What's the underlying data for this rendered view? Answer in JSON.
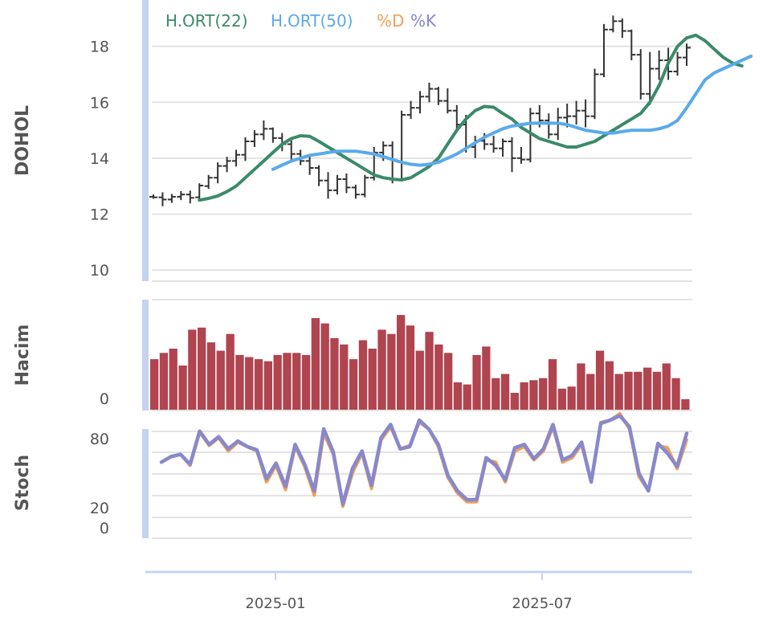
{
  "chart_data": [
    {
      "type": "ohlc",
      "panel": "price",
      "ylabel": "DOHOL",
      "ylim": [
        9.6,
        19.6
      ],
      "yticks": [
        10,
        12,
        14,
        16,
        18
      ],
      "xticks": [
        "2025-01",
        "2025-07"
      ],
      "legend": [
        {
          "label": "H.ORT(22)",
          "color": "#3b8a6a"
        },
        {
          "label": "H.ORT(50)",
          "color": "#5aaaea"
        },
        {
          "label": "%D",
          "color": "#f0a05a"
        },
        {
          "label": "%K",
          "color": "#8888cc"
        }
      ],
      "bars_ohlc": [
        [
          12.62,
          12.7,
          12.55,
          12.6
        ],
        [
          12.6,
          12.78,
          12.28,
          12.52
        ],
        [
          12.52,
          12.72,
          12.4,
          12.62
        ],
        [
          12.62,
          12.82,
          12.5,
          12.7
        ],
        [
          12.7,
          12.84,
          12.38,
          12.58
        ],
        [
          12.6,
          13.1,
          12.5,
          13.02
        ],
        [
          13.0,
          13.4,
          12.9,
          13.3
        ],
        [
          13.3,
          13.85,
          13.1,
          13.72
        ],
        [
          13.72,
          14.05,
          13.5,
          13.9
        ],
        [
          13.9,
          14.3,
          13.7,
          14.12
        ],
        [
          14.12,
          14.75,
          13.9,
          14.6
        ],
        [
          14.6,
          15.0,
          14.4,
          14.85
        ],
        [
          14.85,
          15.35,
          14.65,
          15.05
        ],
        [
          15.05,
          15.1,
          14.55,
          14.72
        ],
        [
          14.72,
          14.9,
          14.25,
          14.5
        ],
        [
          14.5,
          14.65,
          13.95,
          14.15
        ],
        [
          14.15,
          14.3,
          13.75,
          13.9
        ],
        [
          13.9,
          14.1,
          13.4,
          13.65
        ],
        [
          13.65,
          13.75,
          13.0,
          13.2
        ],
        [
          13.2,
          13.5,
          12.55,
          12.85
        ],
        [
          12.85,
          13.4,
          12.7,
          13.25
        ],
        [
          13.25,
          13.45,
          12.75,
          12.95
        ],
        [
          12.95,
          13.05,
          12.55,
          12.7
        ],
        [
          12.7,
          13.4,
          12.6,
          13.3
        ],
        [
          13.3,
          14.4,
          13.2,
          14.2
        ],
        [
          14.2,
          14.6,
          13.9,
          14.45
        ],
        [
          14.45,
          14.6,
          13.1,
          13.25
        ],
        [
          13.25,
          15.7,
          13.2,
          15.55
        ],
        [
          15.55,
          16.05,
          15.4,
          15.8
        ],
        [
          15.8,
          16.4,
          15.6,
          16.2
        ],
        [
          16.2,
          16.7,
          16.0,
          16.48
        ],
        [
          16.48,
          16.55,
          15.9,
          16.05
        ],
        [
          16.05,
          16.5,
          15.6,
          15.7
        ],
        [
          15.7,
          15.9,
          15.05,
          15.2
        ],
        [
          15.2,
          15.55,
          14.2,
          14.4
        ],
        [
          14.4,
          14.8,
          14.0,
          14.62
        ],
        [
          14.62,
          14.9,
          14.3,
          14.5
        ],
        [
          14.5,
          14.8,
          14.2,
          14.35
        ],
        [
          14.35,
          14.7,
          14.05,
          14.6
        ],
        [
          14.6,
          14.75,
          13.5,
          14.0
        ],
        [
          14.0,
          14.4,
          13.8,
          13.95
        ],
        [
          13.95,
          15.8,
          13.85,
          15.6
        ],
        [
          15.6,
          15.9,
          15.1,
          15.35
        ],
        [
          15.35,
          15.6,
          14.7,
          14.85
        ],
        [
          14.85,
          15.8,
          14.65,
          15.45
        ],
        [
          15.45,
          15.95,
          15.1,
          15.5
        ],
        [
          15.5,
          16.05,
          15.2,
          15.7
        ],
        [
          15.7,
          16.1,
          15.1,
          15.5
        ],
        [
          15.5,
          17.2,
          15.4,
          17.0
        ],
        [
          17.0,
          18.8,
          16.9,
          18.6
        ],
        [
          18.6,
          19.1,
          18.5,
          18.9
        ],
        [
          18.9,
          19.0,
          18.3,
          18.55
        ],
        [
          18.55,
          18.6,
          17.5,
          17.7
        ],
        [
          17.7,
          17.9,
          16.1,
          16.3
        ],
        [
          16.3,
          17.8,
          15.9,
          17.2
        ],
        [
          17.2,
          17.85,
          16.8,
          17.5
        ],
        [
          17.5,
          17.95,
          16.8,
          17.1
        ],
        [
          17.1,
          17.8,
          16.95,
          17.6
        ],
        [
          17.6,
          18.1,
          17.3,
          17.95
        ]
      ],
      "series": [
        {
          "name": "H.ORT(22)",
          "color": "#3b8a6a",
          "start": 5,
          "values": [
            12.5,
            12.56,
            12.65,
            12.8,
            13.0,
            13.3,
            13.6,
            13.9,
            14.2,
            14.5,
            14.7,
            14.8,
            14.78,
            14.6,
            14.4,
            14.2,
            14.0,
            13.8,
            13.6,
            13.4,
            13.3,
            13.25,
            13.22,
            13.3,
            13.5,
            13.7,
            14.0,
            14.5,
            15.0,
            15.4,
            15.7,
            15.85,
            15.82,
            15.6,
            15.4,
            15.1,
            14.9,
            14.7,
            14.6,
            14.5,
            14.4,
            14.4,
            14.5,
            14.6,
            14.8,
            15.0,
            15.2,
            15.4,
            15.6,
            16.0,
            16.6,
            17.4,
            18.0,
            18.3,
            18.4,
            18.2,
            17.9,
            17.6,
            17.4,
            17.3
          ]
        },
        {
          "name": "H.ORT(50)",
          "color": "#5aaaea",
          "start": 13,
          "values": [
            13.6,
            13.75,
            13.9,
            14.0,
            14.1,
            14.15,
            14.2,
            14.25,
            14.25,
            14.25,
            14.2,
            14.15,
            14.05,
            13.95,
            13.85,
            13.78,
            13.75,
            13.78,
            13.85,
            14.0,
            14.15,
            14.35,
            14.55,
            14.75,
            14.9,
            15.05,
            15.15,
            15.2,
            15.25,
            15.25,
            15.25,
            15.25,
            15.2,
            15.1,
            15.0,
            14.95,
            14.9,
            14.9,
            14.95,
            15.0,
            15.0,
            15.0,
            15.05,
            15.15,
            15.35,
            15.8,
            16.3,
            16.8,
            17.05,
            17.2,
            17.35,
            17.5,
            17.65
          ]
        }
      ]
    },
    {
      "type": "bar",
      "panel": "volume",
      "ylabel": "Hacim",
      "yticks": [
        0
      ],
      "ylim": [
        0,
        100
      ],
      "color": "#b0444f",
      "values": [
        48,
        54,
        58,
        42,
        76,
        78,
        64,
        56,
        72,
        52,
        50,
        48,
        46,
        52,
        54,
        54,
        52,
        87,
        82,
        68,
        62,
        48,
        66,
        58,
        76,
        72,
        90,
        80,
        56,
        74,
        62,
        54,
        26,
        24,
        52,
        60,
        30,
        34,
        16,
        26,
        28,
        30,
        48,
        20,
        22,
        44,
        34,
        56,
        46,
        34,
        36,
        36,
        40,
        36,
        44,
        30,
        10
      ]
    },
    {
      "type": "line",
      "panel": "stochastic",
      "ylabel": "Stoch",
      "yticks": [
        0,
        20,
        80
      ],
      "ylim": [
        0,
        100
      ],
      "series": [
        {
          "name": "%D",
          "color": "#f0a05a",
          "values": [
            50,
            55,
            57,
            47,
            77,
            65,
            72,
            60,
            68,
            64,
            60,
            32,
            47,
            25,
            64,
            46,
            20,
            76,
            57,
            10,
            40,
            58,
            26,
            70,
            82,
            62,
            65,
            86,
            80,
            64,
            36,
            22,
            14,
            14,
            52,
            50,
            32,
            60,
            64,
            52,
            60,
            82,
            50,
            54,
            66,
            32,
            86,
            88,
            94,
            80,
            37,
            24,
            65,
            63,
            44,
            70
          ]
        },
        {
          "name": "%K",
          "color": "#8888cc",
          "values": [
            50,
            55,
            57,
            48,
            78,
            66,
            73,
            62,
            69,
            64,
            61,
            35,
            49,
            28,
            66,
            48,
            24,
            80,
            59,
            12,
            44,
            60,
            29,
            72,
            84,
            62,
            64,
            88,
            80,
            66,
            38,
            24,
            16,
            16,
            54,
            47,
            34,
            63,
            66,
            53,
            62,
            84,
            52,
            56,
            68,
            32,
            85,
            88,
            92,
            82,
            40,
            24,
            67,
            58,
            46,
            76
          ]
        }
      ]
    }
  ]
}
